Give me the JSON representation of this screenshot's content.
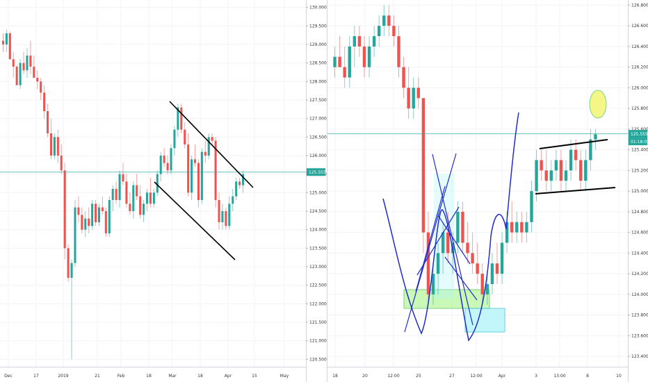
{
  "colors": {
    "up": "#26a69a",
    "down": "#ef5350",
    "grid": "#f0f3fa",
    "price_line": "#26a69a",
    "trend_black": "#000000",
    "pattern_blue": "#1f2bcc",
    "zone_green": "#b9f6a0",
    "zone_cyan": "#b3f5fa",
    "target_yellow": "#f4f786"
  },
  "chart_data": [
    {
      "type": "candlestick",
      "timeframe_hint": "daily",
      "x_tick_labels": [
        "Dec",
        "17",
        "2019",
        "21",
        "Feb",
        "18",
        "Mar",
        "18",
        "Apr",
        "15",
        "May"
      ],
      "y_tick_labels": [
        "120.500",
        "121.000",
        "121.500",
        "122.000",
        "122.500",
        "123.000",
        "123.500",
        "124.000",
        "124.500",
        "125.000",
        "125.500",
        "126.000",
        "126.500",
        "127.000",
        "127.500",
        "128.000",
        "128.500",
        "129.000",
        "129.500",
        "130.000"
      ],
      "ylim": [
        120.3,
        130.2
      ],
      "current_price_label": "125.555",
      "current_price": 125.555,
      "candles": [
        [
          129.1,
          129.3,
          128.8,
          129.0
        ],
        [
          129.0,
          129.4,
          128.8,
          129.3
        ],
        [
          129.3,
          129.35,
          128.6,
          128.6
        ],
        [
          128.6,
          128.8,
          128.1,
          128.4
        ],
        [
          128.4,
          128.45,
          127.9,
          127.9
        ],
        [
          127.9,
          128.6,
          127.8,
          128.5
        ],
        [
          128.5,
          128.8,
          128.2,
          128.3
        ],
        [
          128.3,
          128.9,
          128.1,
          128.7
        ],
        [
          128.7,
          129.1,
          128.2,
          128.4
        ],
        [
          128.4,
          128.7,
          128.1,
          128.1
        ],
        [
          128.1,
          128.3,
          127.8,
          128.0
        ],
        [
          128.0,
          128.1,
          127.5,
          127.7
        ],
        [
          127.7,
          127.9,
          127.0,
          127.2
        ],
        [
          127.2,
          127.4,
          126.5,
          126.6
        ],
        [
          126.6,
          127.0,
          125.9,
          126.0
        ],
        [
          126.0,
          126.6,
          125.9,
          126.5
        ],
        [
          126.5,
          126.7,
          125.8,
          126.0
        ],
        [
          126.0,
          126.3,
          125.5,
          125.6
        ],
        [
          125.6,
          125.8,
          123.2,
          123.5
        ],
        [
          123.5,
          123.6,
          122.6,
          122.7
        ],
        [
          122.7,
          123.2,
          120.5,
          123.1
        ],
        [
          123.1,
          124.8,
          123.0,
          124.6
        ],
        [
          124.6,
          124.9,
          124.2,
          124.4
        ],
        [
          124.4,
          124.6,
          123.9,
          124.0
        ],
        [
          124.0,
          124.5,
          123.8,
          124.3
        ],
        [
          124.3,
          124.6,
          123.9,
          124.1
        ],
        [
          124.1,
          124.8,
          124.0,
          124.7
        ],
        [
          124.7,
          124.8,
          124.1,
          124.2
        ],
        [
          124.2,
          124.7,
          124.1,
          124.6
        ],
        [
          124.6,
          124.9,
          124.4,
          124.5
        ],
        [
          124.5,
          124.6,
          123.8,
          123.9
        ],
        [
          123.9,
          124.9,
          123.8,
          124.8
        ],
        [
          124.8,
          125.2,
          124.5,
          125.1
        ],
        [
          125.1,
          125.3,
          124.7,
          124.8
        ],
        [
          124.8,
          125.6,
          124.6,
          125.5
        ],
        [
          125.5,
          125.8,
          125.2,
          125.3
        ],
        [
          125.3,
          125.5,
          124.6,
          124.7
        ],
        [
          124.7,
          125.0,
          124.4,
          124.5
        ],
        [
          124.5,
          125.3,
          124.3,
          125.2
        ],
        [
          125.2,
          125.5,
          124.8,
          124.9
        ],
        [
          124.9,
          125.2,
          124.3,
          124.4
        ],
        [
          124.4,
          124.8,
          124.2,
          124.7
        ],
        [
          124.7,
          125.1,
          124.5,
          125.0
        ],
        [
          125.0,
          125.4,
          124.6,
          124.7
        ],
        [
          124.7,
          125.1,
          124.6,
          125.0
        ],
        [
          125.0,
          125.6,
          124.9,
          125.5
        ],
        [
          125.5,
          126.1,
          125.3,
          126.0
        ],
        [
          126.0,
          126.2,
          125.7,
          125.8
        ],
        [
          125.8,
          126.0,
          125.5,
          125.6
        ],
        [
          125.6,
          126.3,
          125.5,
          126.2
        ],
        [
          126.2,
          126.8,
          126.0,
          126.7
        ],
        [
          126.7,
          127.4,
          126.5,
          127.3
        ],
        [
          127.3,
          127.4,
          126.6,
          126.7
        ],
        [
          126.7,
          126.9,
          126.2,
          126.3
        ],
        [
          126.3,
          126.6,
          124.9,
          125.0
        ],
        [
          125.0,
          126.0,
          124.8,
          125.9
        ],
        [
          125.9,
          126.3,
          125.7,
          125.8
        ],
        [
          125.8,
          125.9,
          124.6,
          124.8
        ],
        [
          124.8,
          126.2,
          124.7,
          126.1
        ],
        [
          126.1,
          126.4,
          125.8,
          126.0
        ],
        [
          126.0,
          126.6,
          125.9,
          126.5
        ],
        [
          126.5,
          126.6,
          126.3,
          126.4
        ],
        [
          126.4,
          126.5,
          124.6,
          124.8
        ],
        [
          124.8,
          125.0,
          124.0,
          124.2
        ],
        [
          124.2,
          124.7,
          124.0,
          124.5
        ],
        [
          124.5,
          124.6,
          124.0,
          124.1
        ],
        [
          124.1,
          124.9,
          124.0,
          124.7
        ],
        [
          124.7,
          125.1,
          124.5,
          124.9
        ],
        [
          124.9,
          125.4,
          124.8,
          125.3
        ],
        [
          125.3,
          125.4,
          125.1,
          125.2
        ],
        [
          125.2,
          125.6,
          125.0,
          125.5
        ]
      ],
      "annotations": [
        "descending channel (two black trend lines)"
      ]
    },
    {
      "type": "candlestick",
      "timeframe_hint": "intraday",
      "x_tick_labels": [
        "18",
        "20",
        "12:00",
        "25",
        "27",
        "12:00",
        "Apr",
        "3",
        "13:00",
        "8",
        "10"
      ],
      "y_tick_labels": [
        "123.400",
        "123.600",
        "123.800",
        "124.000",
        "124.200",
        "124.400",
        "124.600",
        "124.800",
        "125.000",
        "125.200",
        "125.400",
        "125.600",
        "125.800",
        "126.000",
        "126.200",
        "126.400",
        "126.600",
        "126.800"
      ],
      "ylim": [
        123.3,
        126.85
      ],
      "current_price_label": "125.555",
      "current_price": 125.555,
      "countdown_label": "01:18:05",
      "candles": [
        [
          126.2,
          126.4,
          126.1,
          126.3
        ],
        [
          126.3,
          126.5,
          126.2,
          126.2
        ],
        [
          126.2,
          126.4,
          126.0,
          126.1
        ],
        [
          126.1,
          126.5,
          126.0,
          126.4
        ],
        [
          126.4,
          126.6,
          126.2,
          126.5
        ],
        [
          126.5,
          126.6,
          126.3,
          126.4
        ],
        [
          126.4,
          126.5,
          126.1,
          126.2
        ],
        [
          126.2,
          126.5,
          126.1,
          126.4
        ],
        [
          126.4,
          126.6,
          126.3,
          126.5
        ],
        [
          126.5,
          126.7,
          126.4,
          126.6
        ],
        [
          126.6,
          126.8,
          126.5,
          126.7
        ],
        [
          126.7,
          126.8,
          126.5,
          126.6
        ],
        [
          126.6,
          126.7,
          126.4,
          126.5
        ],
        [
          126.5,
          126.6,
          126.1,
          126.2
        ],
        [
          126.2,
          126.3,
          125.9,
          126.0
        ],
        [
          126.0,
          126.2,
          125.7,
          125.8
        ],
        [
          125.8,
          126.1,
          125.7,
          126.0
        ],
        [
          126.0,
          126.1,
          125.8,
          125.9
        ],
        [
          125.9,
          125.9,
          124.4,
          124.6
        ],
        [
          124.6,
          124.8,
          123.9,
          124.0
        ],
        [
          124.0,
          124.3,
          123.9,
          124.2
        ],
        [
          124.2,
          124.5,
          124.0,
          124.4
        ],
        [
          124.4,
          124.7,
          124.2,
          124.6
        ],
        [
          124.6,
          124.8,
          124.3,
          124.4
        ],
        [
          124.4,
          124.6,
          124.2,
          124.5
        ],
        [
          124.5,
          124.9,
          124.4,
          124.8
        ],
        [
          124.8,
          124.9,
          124.4,
          124.5
        ],
        [
          124.5,
          124.7,
          124.3,
          124.4
        ],
        [
          124.4,
          124.6,
          124.2,
          124.3
        ],
        [
          124.3,
          124.5,
          124.1,
          124.2
        ],
        [
          124.2,
          124.3,
          123.9,
          124.0
        ],
        [
          124.0,
          124.2,
          123.9,
          124.1
        ],
        [
          124.1,
          124.4,
          124.0,
          124.3
        ],
        [
          124.3,
          124.5,
          124.1,
          124.2
        ],
        [
          124.2,
          124.6,
          124.1,
          124.5
        ],
        [
          124.5,
          124.8,
          124.4,
          124.7
        ],
        [
          124.7,
          124.9,
          124.5,
          124.6
        ],
        [
          124.6,
          124.8,
          124.5,
          124.7
        ],
        [
          124.7,
          124.8,
          124.5,
          124.6
        ],
        [
          124.6,
          124.8,
          124.5,
          124.7
        ],
        [
          124.7,
          125.1,
          124.6,
          125.0
        ],
        [
          125.0,
          125.4,
          124.9,
          125.3
        ],
        [
          125.3,
          125.4,
          125.1,
          125.2
        ],
        [
          125.2,
          125.4,
          125.0,
          125.1
        ],
        [
          125.1,
          125.3,
          125.0,
          125.2
        ],
        [
          125.2,
          125.4,
          125.1,
          125.3
        ],
        [
          125.3,
          125.4,
          125.0,
          125.1
        ],
        [
          125.1,
          125.3,
          125.0,
          125.2
        ],
        [
          125.2,
          125.5,
          125.1,
          125.4
        ],
        [
          125.4,
          125.5,
          125.2,
          125.3
        ],
        [
          125.3,
          125.4,
          125.0,
          125.1
        ],
        [
          125.1,
          125.4,
          125.0,
          125.3
        ],
        [
          125.3,
          125.6,
          125.2,
          125.5
        ],
        [
          125.5,
          125.6,
          125.4,
          125.55
        ]
      ],
      "annotations": [
        "double bottom (blue W curves)",
        "rising wedge (black lines)",
        "support zones",
        "target circle"
      ]
    }
  ]
}
